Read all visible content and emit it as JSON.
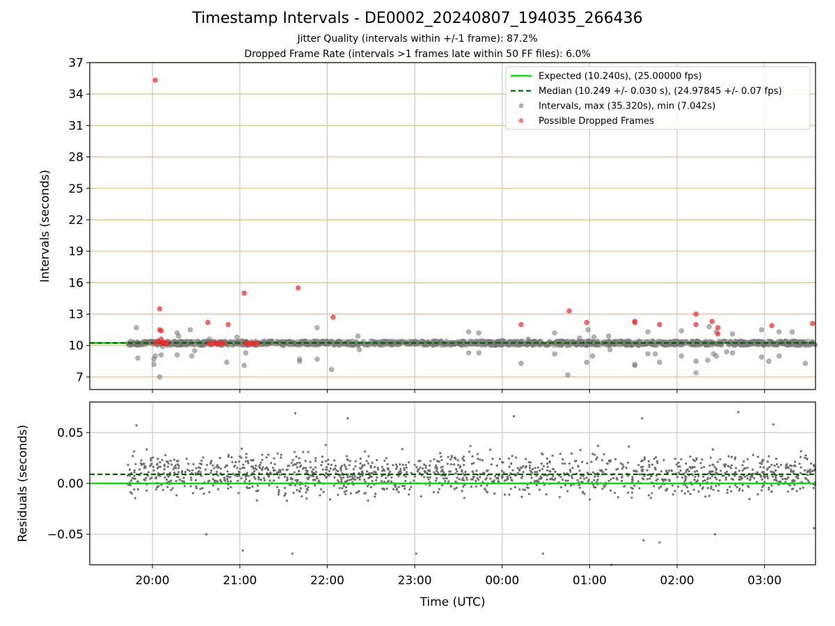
{
  "figure": {
    "title": "Timestamp Intervals - DE0002_20240807_194035_266436",
    "subtitle_jitter": "Jitter Quality (intervals within +/-1 frame): 87.2%",
    "subtitle_dropped": "Dropped Frame Rate (intervals >1 frames late within 50 FF files): 6.0%"
  },
  "chart_data": [
    {
      "type": "scatter",
      "panel": "intervals",
      "ylabel": "Intervals (seconds)",
      "xlabel": "",
      "x_ticks": [
        "20:00",
        "21:00",
        "22:00",
        "23:00",
        "00:00",
        "01:00",
        "02:00",
        "03:00"
      ],
      "y_ticks": [
        7,
        10,
        13,
        16,
        19,
        22,
        25,
        28,
        31,
        34,
        37
      ],
      "ylim": [
        5.8,
        37
      ],
      "xlim": [
        "19:17",
        "03:35"
      ],
      "grid": true,
      "legend_position": "top-right",
      "expected_interval_s": 10.24,
      "median_interval_s": 10.249,
      "legend": [
        {
          "label": "Expected (10.240s), (25.00000 fps)",
          "style": "solid-line",
          "color": "#00e000"
        },
        {
          "label": "Median (10.249 +/- 0.030 s), (24.97845 +/- 0.07 fps)",
          "style": "dashed-line",
          "color": "#006400"
        },
        {
          "label": "Intervals, max (35.320s), min (7.042s)",
          "style": "marker",
          "color": "#808080"
        },
        {
          "label": "Possible Dropped Frames",
          "style": "marker",
          "color": "#ff3030"
        }
      ],
      "series": [
        {
          "name": "Intervals, max (35.320s), min (7.042s)",
          "color": "#808080",
          "band": {
            "x_start": "19:43",
            "x_end": "03:35",
            "y_min": 10.0,
            "y_max": 10.45
          },
          "points": [
            {
              "x": "19:45",
              "y": 10.4
            },
            {
              "x": "19:47",
              "y": 10.1
            },
            {
              "x": "19:49",
              "y": 11.7
            },
            {
              "x": "19:50",
              "y": 8.8
            },
            {
              "x": "20:01",
              "y": 8.2
            },
            {
              "x": "20:01",
              "y": 8.7
            },
            {
              "x": "20:02",
              "y": 9.0
            },
            {
              "x": "20:05",
              "y": 7.0
            },
            {
              "x": "20:06",
              "y": 9.1
            },
            {
              "x": "20:07",
              "y": 9.9
            },
            {
              "x": "20:17",
              "y": 9.1
            },
            {
              "x": "20:17",
              "y": 11.2
            },
            {
              "x": "20:18",
              "y": 10.9
            },
            {
              "x": "20:26",
              "y": 11.5
            },
            {
              "x": "20:27",
              "y": 9.0
            },
            {
              "x": "20:29",
              "y": 9.5
            },
            {
              "x": "20:39",
              "y": 10.6
            },
            {
              "x": "20:51",
              "y": 8.4
            },
            {
              "x": "20:58",
              "y": 10.8
            },
            {
              "x": "21:03",
              "y": 8.1
            },
            {
              "x": "21:04",
              "y": 9.3
            },
            {
              "x": "21:41",
              "y": 8.5
            },
            {
              "x": "21:41",
              "y": 8.7
            },
            {
              "x": "21:53",
              "y": 11.7
            },
            {
              "x": "21:53",
              "y": 8.7
            },
            {
              "x": "22:03",
              "y": 7.7
            },
            {
              "x": "22:21",
              "y": 10.9
            },
            {
              "x": "22:22",
              "y": 9.6
            },
            {
              "x": "23:37",
              "y": 11.3
            },
            {
              "x": "23:37",
              "y": 9.3
            },
            {
              "x": "23:44",
              "y": 11.2
            },
            {
              "x": "23:44",
              "y": 9.3
            },
            {
              "x": "00:00",
              "y": 10.5
            },
            {
              "x": "00:13",
              "y": 8.3
            },
            {
              "x": "00:18",
              "y": 10.6
            },
            {
              "x": "00:36",
              "y": 11.2
            },
            {
              "x": "00:36",
              "y": 9.2
            },
            {
              "x": "00:45",
              "y": 7.2
            },
            {
              "x": "00:53",
              "y": 10.7
            },
            {
              "x": "00:58",
              "y": 8.4
            },
            {
              "x": "00:59",
              "y": 11.5
            },
            {
              "x": "01:02",
              "y": 9.0
            },
            {
              "x": "01:03",
              "y": 10.8
            },
            {
              "x": "01:13",
              "y": 10.9
            },
            {
              "x": "01:14",
              "y": 9.6
            },
            {
              "x": "01:31",
              "y": 8.1
            },
            {
              "x": "01:31",
              "y": 8.2
            },
            {
              "x": "01:40",
              "y": 11.3
            },
            {
              "x": "01:40",
              "y": 9.2
            },
            {
              "x": "01:45",
              "y": 9.2
            },
            {
              "x": "01:48",
              "y": 8.4
            },
            {
              "x": "02:03",
              "y": 11.4
            },
            {
              "x": "02:03",
              "y": 9.0
            },
            {
              "x": "02:13",
              "y": 8.5
            },
            {
              "x": "02:13",
              "y": 7.4
            },
            {
              "x": "02:21",
              "y": 8.6
            },
            {
              "x": "02:22",
              "y": 11.8
            },
            {
              "x": "02:25",
              "y": 9.2
            },
            {
              "x": "02:27",
              "y": 11.3
            },
            {
              "x": "02:27",
              "y": 9.0
            },
            {
              "x": "02:34",
              "y": 9.4
            },
            {
              "x": "02:38",
              "y": 11.1
            },
            {
              "x": "02:38",
              "y": 9.3
            },
            {
              "x": "02:58",
              "y": 11.5
            },
            {
              "x": "02:58",
              "y": 8.9
            },
            {
              "x": "03:03",
              "y": 8.5
            },
            {
              "x": "03:10",
              "y": 11.3
            },
            {
              "x": "03:10",
              "y": 9.0
            },
            {
              "x": "03:19",
              "y": 11.3
            },
            {
              "x": "03:28",
              "y": 8.3
            }
          ]
        },
        {
          "name": "Possible Dropped Frames",
          "color": "#ff3030",
          "points": [
            {
              "x": "20:02",
              "y": 35.32
            },
            {
              "x": "20:02",
              "y": 10.2
            },
            {
              "x": "20:04",
              "y": 10.4
            },
            {
              "x": "20:05",
              "y": 13.5
            },
            {
              "x": "20:05",
              "y": 11.5
            },
            {
              "x": "20:06",
              "y": 11.4
            },
            {
              "x": "20:06",
              "y": 10.6
            },
            {
              "x": "20:07",
              "y": 10.2
            },
            {
              "x": "20:08",
              "y": 10.3
            },
            {
              "x": "20:09",
              "y": 10.2
            },
            {
              "x": "20:10",
              "y": 10.2
            },
            {
              "x": "20:38",
              "y": 12.2
            },
            {
              "x": "20:39",
              "y": 10.2
            },
            {
              "x": "20:41",
              "y": 10.2
            },
            {
              "x": "20:43",
              "y": 10.2
            },
            {
              "x": "20:45",
              "y": 10.2
            },
            {
              "x": "20:47",
              "y": 10.2
            },
            {
              "x": "20:49",
              "y": 10.2
            },
            {
              "x": "20:52",
              "y": 12.0
            },
            {
              "x": "21:03",
              "y": 15.0
            },
            {
              "x": "21:04",
              "y": 10.2
            },
            {
              "x": "21:06",
              "y": 10.2
            },
            {
              "x": "21:08",
              "y": 10.2
            },
            {
              "x": "21:10",
              "y": 10.2
            },
            {
              "x": "21:12",
              "y": 10.2
            },
            {
              "x": "21:40",
              "y": 15.5
            },
            {
              "x": "22:04",
              "y": 12.7
            },
            {
              "x": "00:13",
              "y": 12.0
            },
            {
              "x": "00:46",
              "y": 13.3
            },
            {
              "x": "00:58",
              "y": 12.2
            },
            {
              "x": "01:31",
              "y": 12.3
            },
            {
              "x": "01:31",
              "y": 12.2
            },
            {
              "x": "01:48",
              "y": 12.0
            },
            {
              "x": "02:13",
              "y": 13.0
            },
            {
              "x": "02:13",
              "y": 12.0
            },
            {
              "x": "02:24",
              "y": 12.3
            },
            {
              "x": "02:28",
              "y": 11.7
            },
            {
              "x": "02:28",
              "y": 11.1
            },
            {
              "x": "03:05",
              "y": 11.9
            },
            {
              "x": "03:33",
              "y": 12.1
            }
          ]
        }
      ]
    },
    {
      "type": "scatter",
      "panel": "residuals",
      "ylabel": "Residuals (seconds)",
      "xlabel": "Time (UTC)",
      "x_ticks": [
        "20:00",
        "21:00",
        "22:00",
        "23:00",
        "00:00",
        "01:00",
        "02:00",
        "03:00"
      ],
      "y_ticks": [
        "0.05",
        "0.00",
        "−0.05"
      ],
      "ylim": [
        -0.08,
        0.08
      ],
      "grid": true,
      "expected_line": 0.0,
      "median_line": 0.009,
      "series": [
        {
          "name": "Residuals",
          "color": "#707070",
          "point_count": 1500,
          "x_range": [
            "19:43",
            "03:35"
          ],
          "distribution": {
            "center": 0.009,
            "spread": 0.045
          },
          "outliers": [
            {
              "x": "20:37",
              "y": -0.05
            },
            {
              "x": "21:02",
              "y": -0.066
            },
            {
              "x": "21:36",
              "y": -0.069
            },
            {
              "x": "23:01",
              "y": -0.069
            },
            {
              "x": "00:28",
              "y": -0.069
            },
            {
              "x": "01:15",
              "y": -0.08
            },
            {
              "x": "01:37",
              "y": -0.056
            },
            {
              "x": "01:48",
              "y": -0.058
            },
            {
              "x": "02:26",
              "y": -0.05
            },
            {
              "x": "03:34",
              "y": -0.044
            },
            {
              "x": "21:38",
              "y": 0.069
            },
            {
              "x": "22:14",
              "y": 0.064
            },
            {
              "x": "00:08",
              "y": 0.066
            },
            {
              "x": "01:36",
              "y": 0.064
            },
            {
              "x": "02:42",
              "y": 0.07
            },
            {
              "x": "03:06",
              "y": 0.058
            },
            {
              "x": "19:49",
              "y": 0.057
            }
          ]
        }
      ]
    }
  ]
}
